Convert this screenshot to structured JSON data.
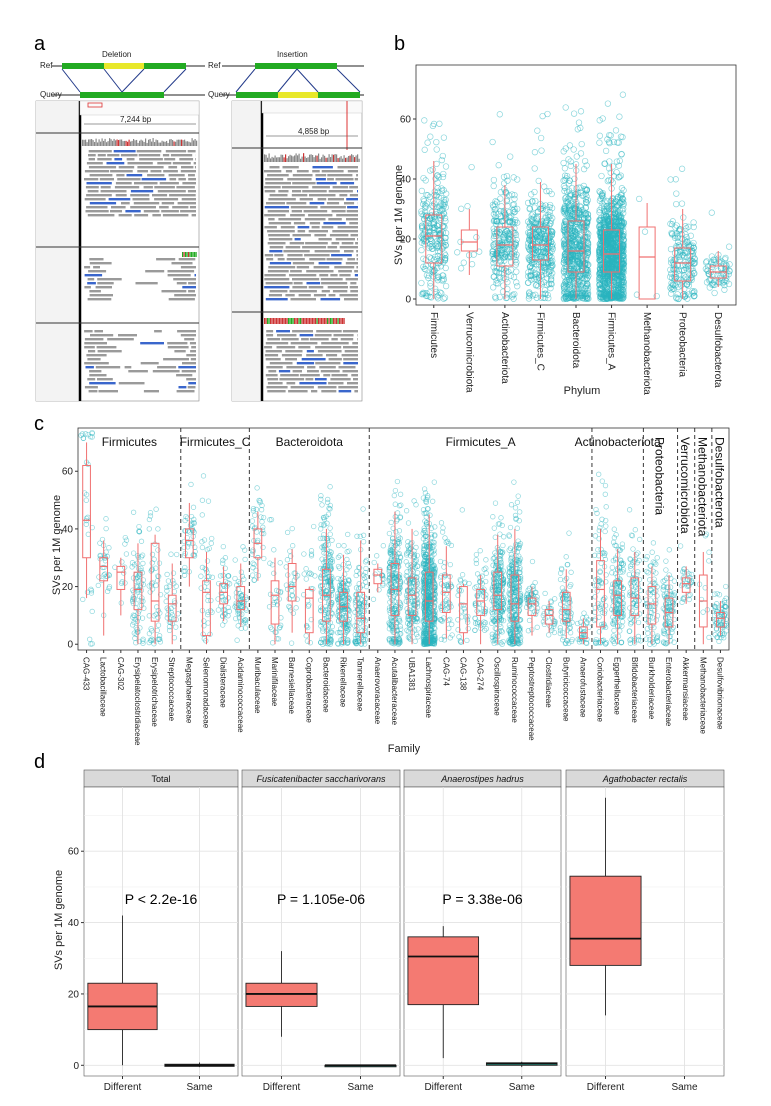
{
  "panel_labels": {
    "a": "a",
    "b": "b",
    "c": "c",
    "d": "d"
  },
  "panel_a": {
    "left": {
      "title": "Deletion",
      "ref": "Ref",
      "query": "Query",
      "scale_label": "7,244 bp"
    },
    "right": {
      "title": "Insertion",
      "ref": "Ref",
      "query": "Query",
      "scale_label": "4,858 bp"
    }
  },
  "colors": {
    "point": "#2ab5c0",
    "box": "#f07070",
    "fill": "#f47a72",
    "green": "#22aa22",
    "yellow": "#e8e82a"
  },
  "chart_data": [
    {
      "id": "b",
      "type": "scatter",
      "title": "",
      "xlabel": "Phylum",
      "ylabel": "SVs per 1M genome",
      "ylim": [
        -2,
        78
      ],
      "yticks": [
        0,
        20,
        40,
        60
      ],
      "categories": [
        "Firmicutes",
        "Verrucomicrobiota",
        "Actinobacteriota",
        "Firmicutes_C",
        "Bacteroidota",
        "Firmicutes_A",
        "Methanobacteriota",
        "Proteobacteria",
        "Desulfobacterota"
      ],
      "boxes": [
        {
          "min": 0,
          "q1": 12,
          "median": 21,
          "q3": 28,
          "max": 46
        },
        {
          "min": 8,
          "q1": 16,
          "median": 19,
          "q3": 23,
          "max": 30
        },
        {
          "min": 0,
          "q1": 11,
          "median": 18,
          "q3": 24,
          "max": 38
        },
        {
          "min": 0,
          "q1": 13,
          "median": 18,
          "q3": 24,
          "max": 39
        },
        {
          "min": 0,
          "q1": 9,
          "median": 16,
          "q3": 26,
          "max": 45
        },
        {
          "min": 0,
          "q1": 9,
          "median": 15,
          "q3": 23,
          "max": 45
        },
        {
          "min": 0,
          "q1": 0,
          "median": 14,
          "q3": 24,
          "max": 32
        },
        {
          "min": 0,
          "q1": 6,
          "median": 12,
          "q3": 17,
          "max": 30
        },
        {
          "min": 4,
          "q1": 7,
          "median": 9,
          "q3": 11,
          "max": 16
        }
      ],
      "point_counts": [
        260,
        12,
        250,
        330,
        650,
        1100,
        4,
        180,
        70
      ]
    },
    {
      "id": "c",
      "type": "scatter",
      "xlabel": "Family",
      "ylabel": "SVs per 1M genome",
      "ylim": [
        -2,
        75
      ],
      "yticks": [
        0,
        20,
        40,
        60
      ],
      "categories": [
        "CAG-433",
        "Lactobacillaceae",
        "CAG-302",
        "Erysipelatoclostridiaceae",
        "Erysipelotrichaceae",
        "Streptococcaceae",
        "Megasphaeraceae",
        "Selenomonadaceae",
        "Dialisteraceae",
        "Acidaminococcaceae",
        "Muribaculaceae",
        "Marinifilaceae",
        "Barnesiellaceae",
        "Coprobacteraceae",
        "Bacteroidaceae",
        "Rikenellaceae",
        "Tannerellaceae",
        "Anaerovoracaceae",
        "Acutalibacteraceae",
        "UBA1381",
        "Lachnospiraceae",
        "CAG-74",
        "CAG-138",
        "CAG-274",
        "Oscillospiraceae",
        "Ruminococcaceae",
        "Peptostreptococcaceae",
        "Clostridiaceae",
        "Butyricicoccaceae",
        "Anaerofustaceae",
        "Coriobacteriaceae",
        "Eggerthellaceae",
        "Bifidobacteriaceae",
        "Burkholderiaceae",
        "Enterobacteriaceae",
        "Akkermansiaceae",
        "Methanobacteriaceae",
        "Desulfovibrionaceae"
      ],
      "groups": [
        {
          "name": "Firmicutes",
          "start": 0,
          "end": 5
        },
        {
          "name": "Firmicutes_C",
          "start": 6,
          "end": 9
        },
        {
          "name": "Bacteroidota",
          "start": 10,
          "end": 16
        },
        {
          "name": "Firmicutes_A",
          "start": 17,
          "end": 29
        },
        {
          "name": "Actinobacteriota",
          "start": 30,
          "end": 32
        },
        {
          "name": "Proteobacteria",
          "start": 33,
          "end": 34
        },
        {
          "name": "Verrucomicrobiota",
          "start": 35,
          "end": 35
        },
        {
          "name": "Methanobacteriota",
          "start": 36,
          "end": 36
        },
        {
          "name": "Desulfobacterota",
          "start": 37,
          "end": 37
        }
      ],
      "boxes": [
        {
          "min": 16,
          "q1": 30,
          "median": 43,
          "q3": 62,
          "max": 70
        },
        {
          "min": 3,
          "q1": 22,
          "median": 27,
          "q3": 30,
          "max": 36
        },
        {
          "min": 10,
          "q1": 19,
          "median": 25,
          "q3": 27,
          "max": 30
        },
        {
          "min": 0,
          "q1": 12,
          "median": 19,
          "q3": 25,
          "max": 35
        },
        {
          "min": 0,
          "q1": 8,
          "median": 15,
          "q3": 35,
          "max": 38
        },
        {
          "min": 0,
          "q1": 8,
          "median": 14,
          "q3": 17,
          "max": 28
        },
        {
          "min": 20,
          "q1": 30,
          "median": 36,
          "q3": 40,
          "max": 49
        },
        {
          "min": 0,
          "q1": 3,
          "median": 18,
          "q3": 22,
          "max": 32
        },
        {
          "min": 8,
          "q1": 14,
          "median": 18,
          "q3": 21,
          "max": 27
        },
        {
          "min": 6,
          "q1": 12,
          "median": 15,
          "q3": 20,
          "max": 28
        },
        {
          "min": 22,
          "q1": 30,
          "median": 35,
          "q3": 40,
          "max": 46
        },
        {
          "min": 0,
          "q1": 7,
          "median": 17,
          "q3": 22,
          "max": 30
        },
        {
          "min": 4,
          "q1": 15,
          "median": 20,
          "q3": 28,
          "max": 33
        },
        {
          "min": 0,
          "q1": 4,
          "median": 16,
          "q3": 19,
          "max": 20
        },
        {
          "min": 0,
          "q1": 8,
          "median": 17,
          "q3": 26,
          "max": 40
        },
        {
          "min": 0,
          "q1": 8,
          "median": 13,
          "q3": 18,
          "max": 31
        },
        {
          "min": 0,
          "q1": 4,
          "median": 9,
          "q3": 18,
          "max": 36
        },
        {
          "min": 18,
          "q1": 21,
          "median": 24,
          "q3": 26,
          "max": 28
        },
        {
          "min": 0,
          "q1": 10,
          "median": 19,
          "q3": 28,
          "max": 46
        },
        {
          "min": 0,
          "q1": 10,
          "median": 17,
          "q3": 23,
          "max": 40
        },
        {
          "min": 0,
          "q1": 8,
          "median": 15,
          "q3": 25,
          "max": 45
        },
        {
          "min": 2,
          "q1": 11,
          "median": 18,
          "q3": 24,
          "max": 34
        },
        {
          "min": 0,
          "q1": 4,
          "median": 14,
          "q3": 20,
          "max": 21
        },
        {
          "min": 0,
          "q1": 10,
          "median": 15,
          "q3": 19,
          "max": 24
        },
        {
          "min": 0,
          "q1": 12,
          "median": 17,
          "q3": 25,
          "max": 38
        },
        {
          "min": 0,
          "q1": 8,
          "median": 14,
          "q3": 24,
          "max": 40
        },
        {
          "min": 3,
          "q1": 10,
          "median": 14,
          "q3": 16,
          "max": 20
        },
        {
          "min": 4,
          "q1": 7,
          "median": 10,
          "q3": 12,
          "max": 15
        },
        {
          "min": 2,
          "q1": 8,
          "median": 12,
          "q3": 18,
          "max": 26
        },
        {
          "min": 0,
          "q1": 2,
          "median": 4,
          "q3": 6,
          "max": 9
        },
        {
          "min": 0,
          "q1": 6,
          "median": 19,
          "q3": 29,
          "max": 40
        },
        {
          "min": 0,
          "q1": 10,
          "median": 17,
          "q3": 22,
          "max": 33
        },
        {
          "min": 0,
          "q1": 10,
          "median": 16,
          "q3": 23,
          "max": 32
        },
        {
          "min": 0,
          "q1": 7,
          "median": 14,
          "q3": 20,
          "max": 27
        },
        {
          "min": 0,
          "q1": 6,
          "median": 11,
          "q3": 16,
          "max": 24
        },
        {
          "min": 14,
          "q1": 18,
          "median": 21,
          "q3": 23,
          "max": 27
        },
        {
          "min": 0,
          "q1": 6,
          "median": 15,
          "q3": 24,
          "max": 32
        },
        {
          "min": 3,
          "q1": 6,
          "median": 9,
          "q3": 11,
          "max": 15
        }
      ],
      "point_counts": [
        30,
        30,
        12,
        80,
        50,
        35,
        40,
        40,
        40,
        60,
        40,
        30,
        30,
        25,
        200,
        160,
        110,
        15,
        250,
        160,
        600,
        60,
        30,
        60,
        220,
        300,
        50,
        30,
        80,
        30,
        80,
        140,
        80,
        70,
        90,
        30,
        10,
        70
      ]
    },
    {
      "id": "d",
      "type": "box",
      "ylabel": "SVs per 1M genome",
      "ylim": [
        -3,
        78
      ],
      "yticks": [
        0,
        20,
        40,
        60
      ],
      "categories": [
        "Different",
        "Same"
      ],
      "facets": [
        {
          "title": "Total",
          "italic": false,
          "pvalue": "P < 2.2e-16",
          "boxes": [
            {
              "min": 0,
              "q1": 10,
              "median": 16.5,
              "q3": 23,
              "max": 42
            },
            {
              "min": -0.5,
              "q1": -0.3,
              "median": 0,
              "q3": 0.3,
              "max": 0.8
            }
          ]
        },
        {
          "title": "Fusicatenibacter saccharivorans",
          "italic": true,
          "pvalue": "P = 1.105e-06",
          "boxes": [
            {
              "min": 8,
              "q1": 16.5,
              "median": 20,
              "q3": 23,
              "max": 32
            },
            {
              "min": 0,
              "q1": 0,
              "median": 0,
              "q3": 0,
              "max": 0
            }
          ]
        },
        {
          "title": "Anaerostipes hadrus",
          "italic": true,
          "pvalue": "P = 3.38e-06",
          "boxes": [
            {
              "min": 2,
              "q1": 17,
              "median": 30.5,
              "q3": 36,
              "max": 39
            },
            {
              "min": -0.5,
              "q1": 0,
              "median": 0.5,
              "q3": 0.7,
              "max": 1
            }
          ]
        },
        {
          "title": "Agathobacter rectalis",
          "italic": true,
          "pvalue": "",
          "boxes": [
            {
              "min": 14,
              "q1": 28,
              "median": 35.5,
              "q3": 53,
              "max": 75
            },
            null
          ]
        }
      ]
    }
  ]
}
